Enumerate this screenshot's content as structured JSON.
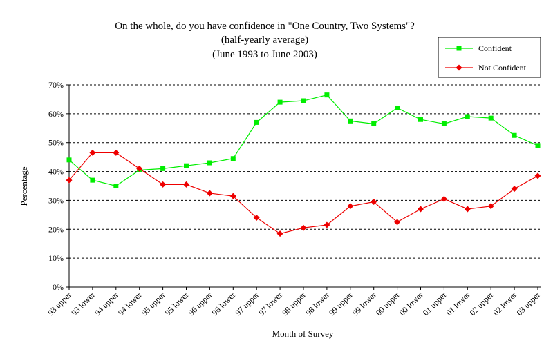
{
  "chart_data": {
    "type": "line",
    "title": "On the whole, do you have confidence in \"One Country, Two Systems\"?",
    "subtitle_1": "(half-yearly average)",
    "subtitle_2": "(June 1993 to June 2003)",
    "xlabel": "Month of Survey",
    "ylabel": "Percentage",
    "ylim": [
      0,
      70
    ],
    "yticks": [
      "0%",
      "10%",
      "20%",
      "30%",
      "40%",
      "50%",
      "60%",
      "70%"
    ],
    "grid": "horizontal dashed",
    "legend_position": "top-right",
    "categories": [
      "93 upper",
      "93 lower",
      "94 upper",
      "94 lower",
      "95 upper",
      "95 lower",
      "96 upper",
      "96 lower",
      "97 upper",
      "97 lower",
      "98 upper",
      "98 lower",
      "99 upper",
      "99 lower",
      "00 upper",
      "00 lower",
      "01 upper",
      "01 lower",
      "02 upper",
      "02 lower",
      "03 upper"
    ],
    "series": [
      {
        "name": "Confident",
        "color": "#00ee00",
        "marker": "square",
        "values": [
          44,
          37,
          35,
          40.5,
          41,
          42,
          43,
          44.5,
          57,
          64,
          64.5,
          66.5,
          57.5,
          56.5,
          62,
          58,
          56.5,
          59,
          58.5,
          52.5,
          49
        ]
      },
      {
        "name": "Not Confident",
        "color": "#ee0000",
        "marker": "diamond",
        "values": [
          37,
          46.5,
          46.5,
          41,
          35.5,
          35.5,
          32.5,
          31.5,
          24,
          18.5,
          20.5,
          21.5,
          28,
          29.5,
          22.5,
          27,
          30.5,
          27,
          28,
          34,
          38.5
        ]
      }
    ]
  }
}
